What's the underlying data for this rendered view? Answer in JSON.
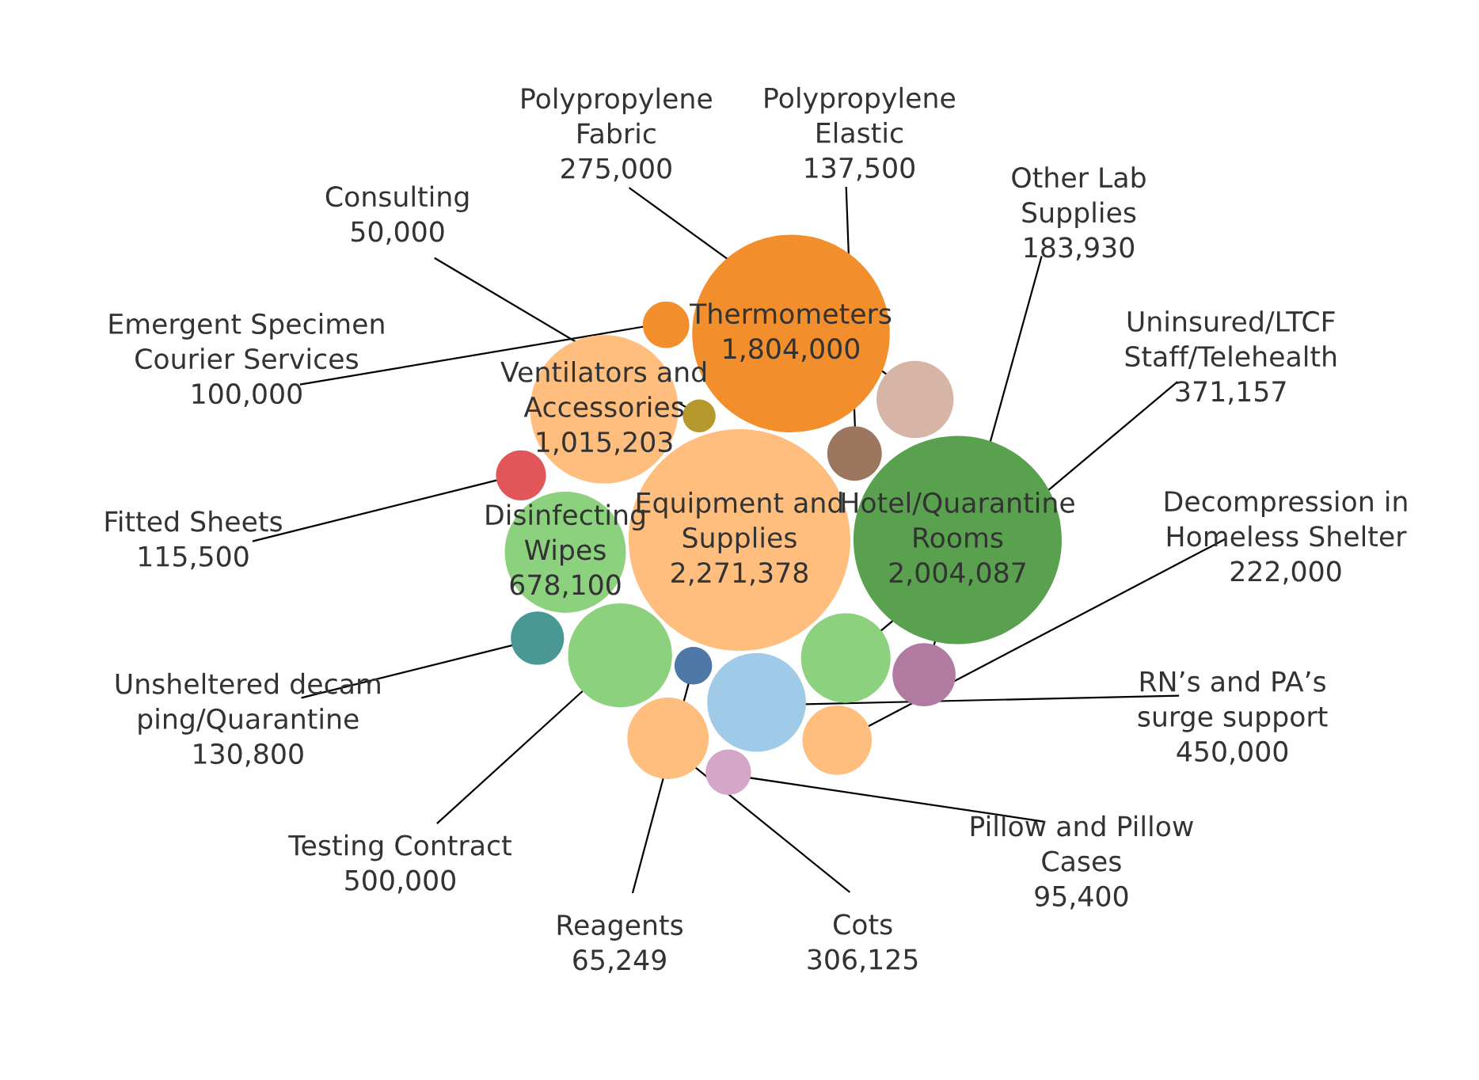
{
  "chart_data": {
    "type": "other",
    "categories": [
      "Other Lab\nSupplies",
      "Testing Contract",
      "Uninsured/LTCF\nStaff/Telehealth",
      "Unsheltered decam\nping/Quarantine",
      "Reagents",
      "RN’s and PA’s\nsurge support",
      "Emergent Specimen\nCourier Services",
      "Consulting",
      "Equipment and\nSupplies",
      "Pillow and Pillow\nCases",
      "Ventilators and\nAccessories",
      "Polypropylene\nElastic",
      "Polypropylene\nFabric",
      "Thermometers",
      "Fitted Sheets",
      "Decompression in\nHomeless Shelter",
      "Hotel/Quarantine\nRooms",
      "Disinfecting\nWipes",
      "Cots"
    ],
    "value_labels": [
      "183,930",
      "500,000",
      "371,157",
      "130,800",
      "65,249",
      "450,000",
      "100,000",
      "50,000",
      "2,271,378",
      "95,400",
      "1,015,203",
      "137,500",
      "275,000",
      "1,804,000",
      "115,500",
      "222,000",
      "2,004,087",
      "678,100",
      "306,125"
    ],
    "values": [
      183930,
      500000,
      371157,
      130800,
      65249,
      450000,
      100000,
      50000,
      2271378,
      95400,
      1015203,
      137500,
      275000,
      1804000,
      115500,
      222000,
      2004087,
      678100,
      306125
    ],
    "colors": [
      "#b07aa1",
      "#8cd17d",
      "#8cd17d",
      "#499894",
      "#4e79a7",
      "#a0cbe8",
      "#f28e2b",
      "#b6992d",
      "#ffbe7d",
      "#d4a6c8",
      "#ffbe7d",
      "#9d7660",
      "#d7b5a6",
      "#f28e2b",
      "#e15759",
      "#ffbe7d",
      "#59a14f",
      "#8cd17d",
      "#ffbe7d"
    ]
  }
}
